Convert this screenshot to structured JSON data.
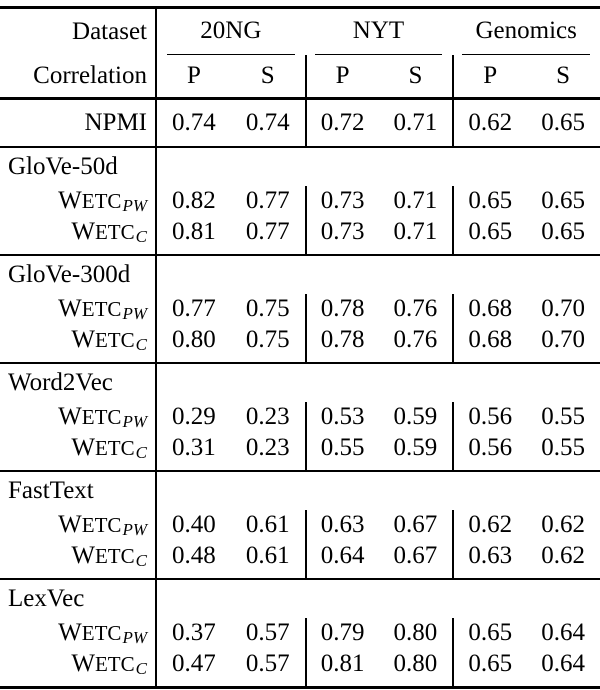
{
  "colors": {
    "background": "#ffffff",
    "text": "#000000",
    "rule": "#000000"
  },
  "table": {
    "header": {
      "row1_label": "Dataset",
      "row2_label": "Correlation",
      "groups": [
        {
          "name": "20NG"
        },
        {
          "name": "NYT"
        },
        {
          "name": "Genomics"
        }
      ],
      "subcolumns": [
        "P",
        "S",
        "P",
        "S",
        "P",
        "S"
      ]
    },
    "baseline_row": {
      "label": "NPMI",
      "values": [
        "0.74",
        "0.74",
        "0.72",
        "0.71",
        "0.62",
        "0.65"
      ]
    },
    "sections": [
      {
        "name": "GloVe-50d",
        "rows": [
          {
            "label": "WETC",
            "sub": "PW",
            "values": [
              "0.82",
              "0.77",
              "0.73",
              "0.71",
              "0.65",
              "0.65"
            ]
          },
          {
            "label": "WETC",
            "sub": "C",
            "values": [
              "0.81",
              "0.77",
              "0.73",
              "0.71",
              "0.65",
              "0.65"
            ]
          }
        ]
      },
      {
        "name": "GloVe-300d",
        "rows": [
          {
            "label": "WETC",
            "sub": "PW",
            "values": [
              "0.77",
              "0.75",
              "0.78",
              "0.76",
              "0.68",
              "0.70"
            ]
          },
          {
            "label": "WETC",
            "sub": "C",
            "values": [
              "0.80",
              "0.75",
              "0.78",
              "0.76",
              "0.68",
              "0.70"
            ]
          }
        ]
      },
      {
        "name": "Word2Vec",
        "rows": [
          {
            "label": "WETC",
            "sub": "PW",
            "values": [
              "0.29",
              "0.23",
              "0.53",
              "0.59",
              "0.56",
              "0.55"
            ]
          },
          {
            "label": "WETC",
            "sub": "C",
            "values": [
              "0.31",
              "0.23",
              "0.55",
              "0.59",
              "0.56",
              "0.55"
            ]
          }
        ]
      },
      {
        "name": "FastText",
        "rows": [
          {
            "label": "WETC",
            "sub": "PW",
            "values": [
              "0.40",
              "0.61",
              "0.63",
              "0.67",
              "0.62",
              "0.62"
            ]
          },
          {
            "label": "WETC",
            "sub": "C",
            "values": [
              "0.48",
              "0.61",
              "0.64",
              "0.67",
              "0.63",
              "0.62"
            ]
          }
        ]
      },
      {
        "name": "LexVec",
        "rows": [
          {
            "label": "WETC",
            "sub": "PW",
            "values": [
              "0.37",
              "0.57",
              "0.79",
              "0.80",
              "0.65",
              "0.64"
            ]
          },
          {
            "label": "WETC",
            "sub": "C",
            "values": [
              "0.47",
              "0.57",
              "0.81",
              "0.80",
              "0.65",
              "0.64"
            ]
          }
        ]
      }
    ]
  }
}
